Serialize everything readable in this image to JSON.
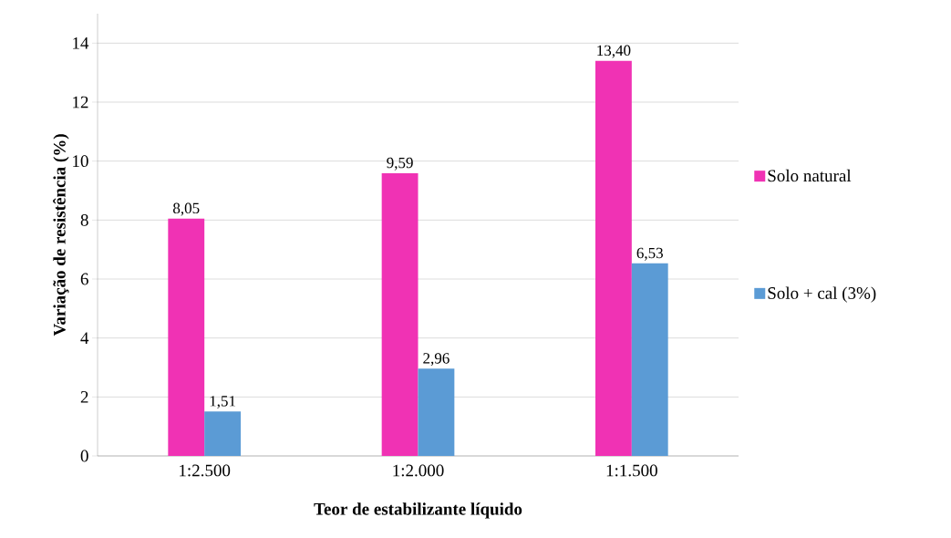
{
  "chart_data": {
    "type": "bar",
    "xlabel": "Teor de estabilizante líquido",
    "ylabel": "Variação de resistência (%)",
    "categories": [
      "1:2.500",
      "1:2.000",
      "1:1.500"
    ],
    "series": [
      {
        "name": "Solo natural",
        "color": "#f032b4",
        "values": [
          8.05,
          9.59,
          13.4
        ],
        "value_labels": [
          "8,05",
          "9,59",
          "13,40"
        ]
      },
      {
        "name": "Solo + cal (3%)",
        "color": "#5b9bd5",
        "values": [
          1.51,
          2.96,
          6.53
        ],
        "value_labels": [
          "1,51",
          "2,96",
          "6,53"
        ]
      }
    ],
    "ylim": [
      0,
      15
    ],
    "yticks": [
      0,
      2,
      4,
      6,
      8,
      10,
      12,
      14
    ],
    "grid": "y",
    "legend": "right"
  }
}
